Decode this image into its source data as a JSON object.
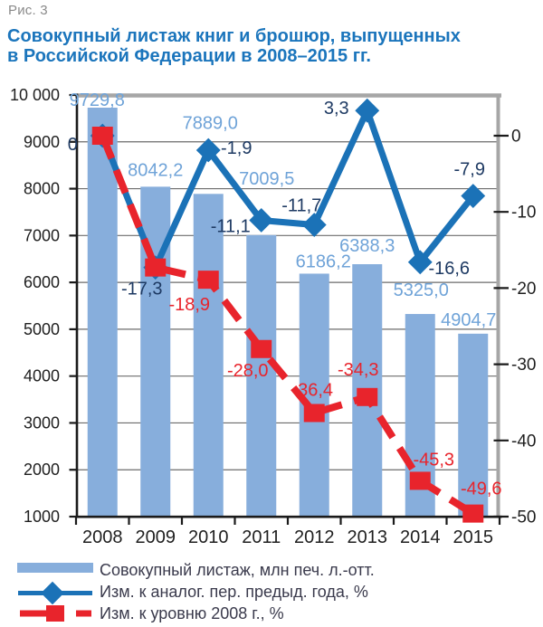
{
  "figure_label": "Рис. 3",
  "title": {
    "line1": "Совокупный листаж книг и брошюр, выпущенных",
    "line2": "в Российской Федерации в 2008–2015 гг."
  },
  "colors": {
    "bar": "#87AEDC",
    "bar_label": "#6FA3D8",
    "blue_line": "#1B72B7",
    "red_line": "#E8242C",
    "line_label_blue": "#1E3A63",
    "line_label_red": "#E8242C",
    "title": "#1B75BC",
    "caption": "#8A8A8A",
    "axis_text": "#1F1F1F",
    "grid": "#6B6B6B",
    "axis_dark": "#1A1A1A",
    "axis_gray": "#A6A6A6",
    "legend_text": "#3A3A4C"
  },
  "chart_data": {
    "type": "combo bar+line",
    "categories": [
      "2008",
      "2009",
      "2010",
      "2011",
      "2012",
      "2013",
      "2014",
      "2015"
    ],
    "series": [
      {
        "name": "Совокупный листаж, млн печ. л.-отт.",
        "type": "bar",
        "axis": "left",
        "values": [
          9729.8,
          8042.2,
          7889.0,
          7009.5,
          6186.2,
          6388.3,
          5325.0,
          4904.7
        ],
        "labels": [
          "9729,8",
          "8042,2",
          "7889,0",
          "7009,5",
          "6186,2",
          "6388,3",
          "5325,0",
          "4904,7"
        ]
      },
      {
        "name": "Изм. к аналог. пер. предыд. года, %",
        "type": "line-diamond",
        "axis": "right",
        "values": [
          0,
          -17.3,
          -1.9,
          -11.1,
          -11.7,
          3.3,
          -16.6,
          -7.9
        ],
        "labels": [
          "0",
          "-17,3",
          "-1,9",
          "-11,1",
          "-11,7",
          "3,3",
          "-16,6",
          "-7,9"
        ]
      },
      {
        "name": "Изм. к уровню 2008 г., %",
        "type": "line-dashed-square",
        "axis": "right",
        "values": [
          0,
          -17.3,
          -18.9,
          -28.0,
          -36.4,
          -34.3,
          -45.3,
          -49.6
        ],
        "labels": [
          null,
          null,
          "-18,9",
          "-28,0",
          "-36,4",
          "-34,3",
          "-45,3",
          "-49,6"
        ]
      }
    ],
    "left_axis": {
      "min": 1000,
      "max": 10000,
      "step": 1000,
      "tick_values": [
        10000,
        9000,
        8000,
        7000,
        6000,
        5000,
        4000,
        3000,
        2000,
        1000
      ],
      "tick_labels": [
        "10 000",
        "9000",
        "8000",
        "7000",
        "6000",
        "5000",
        "4000",
        "3000",
        "2000",
        "1000"
      ]
    },
    "right_axis": {
      "min": -50,
      "max": 0,
      "step": 10,
      "tick_values": [
        0,
        -10,
        -20,
        -30,
        -40,
        -50
      ],
      "tick_labels": [
        "0",
        "-10",
        "-20",
        "-30",
        "-40",
        "-50"
      ]
    },
    "grid": true,
    "legend_position": "bottom"
  }
}
